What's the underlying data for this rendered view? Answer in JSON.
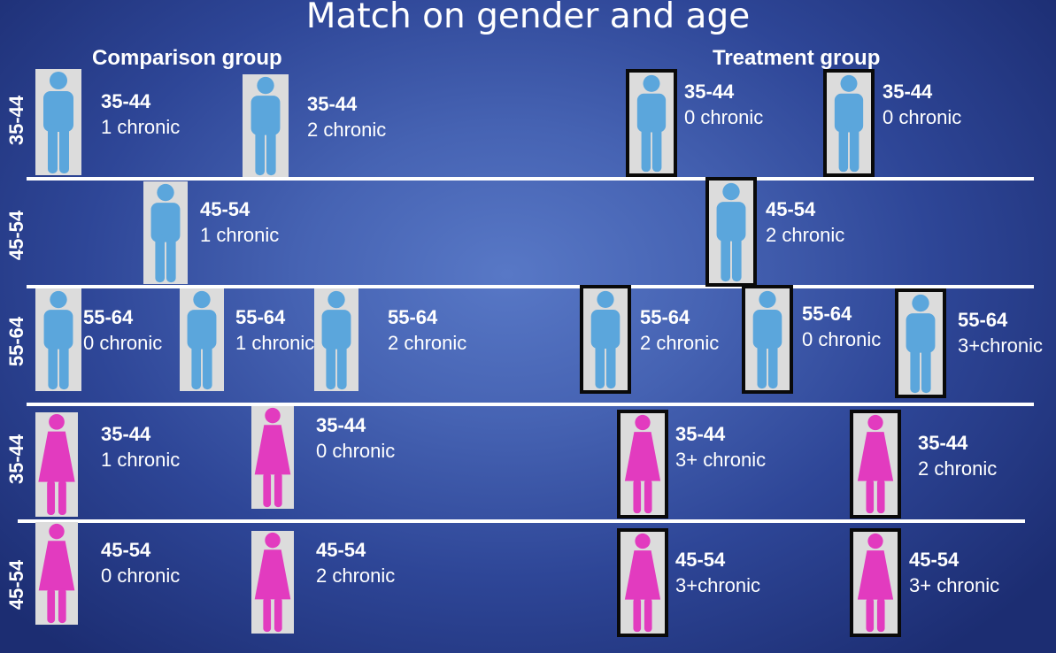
{
  "title": "Match on gender and age",
  "comparison_header": "Comparison group",
  "treatment_header": "Treatment group",
  "colors": {
    "male": "#5ba6dc",
    "female": "#e23bbf",
    "card": "#dcdcdc",
    "selected_border": "#0a0a0a"
  },
  "rows": [
    {
      "label": "35-44",
      "gender": "male",
      "people": [
        {
          "group": "comparison",
          "age": "35-44",
          "chronic": "1 chronic"
        },
        {
          "group": "comparison",
          "age": "35-44",
          "chronic": "2 chronic"
        },
        {
          "group": "treatment",
          "age": "35-44",
          "chronic": "0 chronic"
        },
        {
          "group": "treatment",
          "age": "35-44",
          "chronic": "0 chronic"
        }
      ]
    },
    {
      "label": "45-54",
      "gender": "male",
      "people": [
        {
          "group": "comparison",
          "age": "45-54",
          "chronic": "1 chronic"
        },
        {
          "group": "treatment",
          "age": "45-54",
          "chronic": "2 chronic"
        }
      ]
    },
    {
      "label": "55-64",
      "gender": "male",
      "people": [
        {
          "group": "comparison",
          "age": "55-64",
          "chronic": "0 chronic"
        },
        {
          "group": "comparison",
          "age": "55-64",
          "chronic": "1 chronic"
        },
        {
          "group": "comparison",
          "age": "55-64",
          "chronic": "2 chronic"
        },
        {
          "group": "treatment",
          "age": "55-64",
          "chronic": "2 chronic"
        },
        {
          "group": "treatment",
          "age": "55-64",
          "chronic": "0 chronic"
        },
        {
          "group": "treatment",
          "age": "55-64",
          "chronic": "3+chronic"
        }
      ]
    },
    {
      "label": "35-44",
      "gender": "female",
      "people": [
        {
          "group": "comparison",
          "age": "35-44",
          "chronic": "1 chronic"
        },
        {
          "group": "comparison",
          "age": "35-44",
          "chronic": "0 chronic"
        },
        {
          "group": "treatment",
          "age": "35-44",
          "chronic": "3+ chronic"
        },
        {
          "group": "treatment",
          "age": "35-44",
          "chronic": "2 chronic"
        }
      ]
    },
    {
      "label": "45-54",
      "gender": "female",
      "people": [
        {
          "group": "comparison",
          "age": "45-54",
          "chronic": "0 chronic"
        },
        {
          "group": "comparison",
          "age": "45-54",
          "chronic": "2 chronic"
        },
        {
          "group": "treatment",
          "age": "45-54",
          "chronic": "3+chronic"
        },
        {
          "group": "treatment",
          "age": "45-54",
          "chronic": "3+ chronic"
        }
      ]
    }
  ]
}
